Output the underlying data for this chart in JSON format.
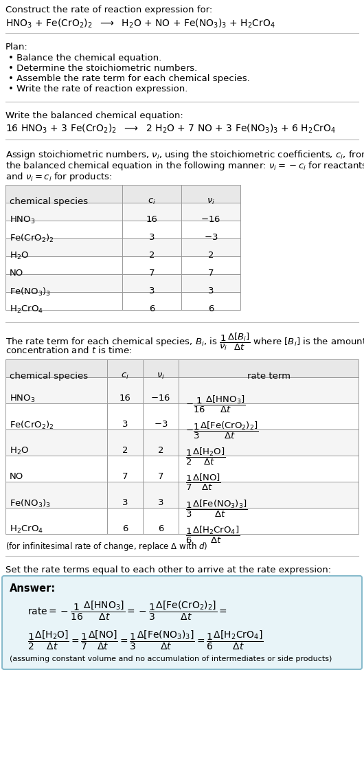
{
  "title_line1": "Construct the rate of reaction expression for:",
  "reaction_unbalanced": "HNO$_3$ + Fe(CrO$_2$)$_2$  $\\longrightarrow$  H$_2$O + NO + Fe(NO$_3$)$_3$ + H$_2$CrO$_4$",
  "plan_header": "Plan:",
  "plan_items": [
    "• Balance the chemical equation.",
    "• Determine the stoichiometric numbers.",
    "• Assemble the rate term for each chemical species.",
    "• Write the rate of reaction expression."
  ],
  "balanced_header": "Write the balanced chemical equation:",
  "reaction_balanced": "16 HNO$_3$ + 3 Fe(CrO$_2$)$_2$  $\\longrightarrow$  2 H$_2$O + 7 NO + 3 Fe(NO$_3$)$_3$ + 6 H$_2$CrO$_4$",
  "stoich_header_lines": [
    "Assign stoichiometric numbers, $\\nu_i$, using the stoichiometric coefficients, $c_i$, from",
    "the balanced chemical equation in the following manner: $\\nu_i = -c_i$ for reactants",
    "and $\\nu_i = c_i$ for products:"
  ],
  "table1_headers": [
    "chemical species",
    "$c_i$",
    "$\\nu_i$"
  ],
  "table1_data": [
    [
      "HNO$_3$",
      "16",
      "$-16$"
    ],
    [
      "Fe(CrO$_2$)$_2$",
      "3",
      "$-3$"
    ],
    [
      "H$_2$O",
      "2",
      "2"
    ],
    [
      "NO",
      "7",
      "7"
    ],
    [
      "Fe(NO$_3$)$_3$",
      "3",
      "3"
    ],
    [
      "H$_2$CrO$_4$",
      "6",
      "6"
    ]
  ],
  "rate_header_line1": "The rate term for each chemical species, $B_i$, is $\\dfrac{1}{\\nu_i}\\dfrac{\\Delta[B_i]}{\\Delta t}$ where $[B_i]$ is the amount",
  "rate_header_line2": "concentration and $t$ is time:",
  "table2_headers": [
    "chemical species",
    "$c_i$",
    "$\\nu_i$",
    "rate term"
  ],
  "table2_data": [
    [
      "HNO$_3$",
      "16",
      "$-16$",
      "$-\\dfrac{1}{16}\\dfrac{\\Delta[\\mathrm{HNO_3}]}{\\Delta t}$"
    ],
    [
      "Fe(CrO$_2$)$_2$",
      "3",
      "$-3$",
      "$-\\dfrac{1}{3}\\dfrac{\\Delta[\\mathrm{Fe(CrO_2)_2}]}{\\Delta t}$"
    ],
    [
      "H$_2$O",
      "2",
      "2",
      "$\\dfrac{1}{2}\\dfrac{\\Delta[\\mathrm{H_2O}]}{\\Delta t}$"
    ],
    [
      "NO",
      "7",
      "7",
      "$\\dfrac{1}{7}\\dfrac{\\Delta[\\mathrm{NO}]}{\\Delta t}$"
    ],
    [
      "Fe(NO$_3$)$_3$",
      "3",
      "3",
      "$\\dfrac{1}{3}\\dfrac{\\Delta[\\mathrm{Fe(NO_3)_3}]}{\\Delta t}$"
    ],
    [
      "H$_2$CrO$_4$",
      "6",
      "6",
      "$\\dfrac{1}{6}\\dfrac{\\Delta[\\mathrm{H_2CrO_4}]}{\\Delta t}$"
    ]
  ],
  "infinitesimal_note": "(for infinitesimal rate of change, replace Δ with $d$)",
  "set_equal_header": "Set the rate terms equal to each other to arrive at the rate expression:",
  "answer_label": "Answer:",
  "answer_line1": "$\\mathrm{rate} = -\\dfrac{1}{16}\\dfrac{\\Delta[\\mathrm{HNO_3}]}{\\Delta t} = -\\dfrac{1}{3}\\dfrac{\\Delta[\\mathrm{Fe(CrO_2)_2}]}{\\Delta t} =$",
  "answer_line2": "$\\dfrac{1}{2}\\dfrac{\\Delta[\\mathrm{H_2O}]}{\\Delta t} = \\dfrac{1}{7}\\dfrac{\\Delta[\\mathrm{NO}]}{\\Delta t} = \\dfrac{1}{3}\\dfrac{\\Delta[\\mathrm{Fe(NO_3)_3}]}{\\Delta t} = \\dfrac{1}{6}\\dfrac{\\Delta[\\mathrm{H_2CrO_4}]}{\\Delta t}$",
  "answer_note": "(assuming constant volume and no accumulation of intermediates or side products)",
  "bg_color": "#ffffff",
  "table_header_bg": "#e8e8e8",
  "table_alt_bg": "#f5f5f5",
  "table_row_bg": "#ffffff",
  "answer_box_bg": "#e8f4f8",
  "answer_box_border": "#88bbcc",
  "sep_color": "#bbbbbb",
  "font_size": 9.5,
  "font_size_small": 8.5
}
